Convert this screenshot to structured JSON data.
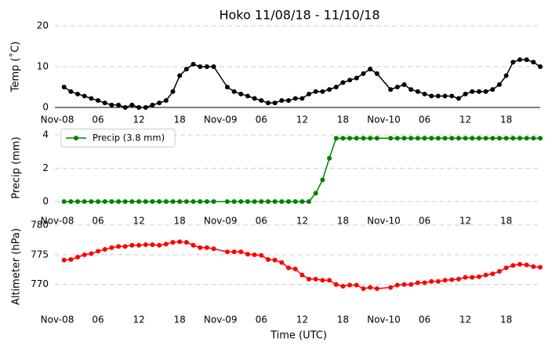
{
  "chart_data": [
    {
      "type": "line",
      "title": "Hoko 11/08/18 - 11/10/18",
      "ylabel": "Temp (˚C)",
      "x": [
        "Nov-08 01:00",
        "Nov-08 02:00",
        "Nov-08 03:00",
        "Nov-08 04:00",
        "Nov-08 05:00",
        "Nov-08 06:00",
        "Nov-08 07:00",
        "Nov-08 08:00",
        "Nov-08 09:00",
        "Nov-08 10:00",
        "Nov-08 11:00",
        "Nov-08 12:00",
        "Nov-08 13:00",
        "Nov-08 14:00",
        "Nov-08 15:00",
        "Nov-08 16:00",
        "Nov-08 17:00",
        "Nov-08 18:00",
        "Nov-08 19:00",
        "Nov-08 20:00",
        "Nov-08 21:00",
        "Nov-08 22:00",
        "Nov-08 23:00",
        "Nov-09 01:00",
        "Nov-09 02:00",
        "Nov-09 03:00",
        "Nov-09 04:00",
        "Nov-09 05:00",
        "Nov-09 06:00",
        "Nov-09 07:00",
        "Nov-09 08:00",
        "Nov-09 09:00",
        "Nov-09 10:00",
        "Nov-09 11:00",
        "Nov-09 12:00",
        "Nov-09 13:00",
        "Nov-09 14:00",
        "Nov-09 15:00",
        "Nov-09 16:00",
        "Nov-09 17:00",
        "Nov-09 18:00",
        "Nov-09 19:00",
        "Nov-09 20:00",
        "Nov-09 21:00",
        "Nov-09 22:00",
        "Nov-09 23:00",
        "Nov-10 01:00",
        "Nov-10 02:00",
        "Nov-10 03:00",
        "Nov-10 04:00",
        "Nov-10 05:00",
        "Nov-10 06:00",
        "Nov-10 07:00",
        "Nov-10 08:00",
        "Nov-10 09:00",
        "Nov-10 10:00",
        "Nov-10 11:00",
        "Nov-10 12:00",
        "Nov-10 13:00",
        "Nov-10 14:00",
        "Nov-10 15:00",
        "Nov-10 16:00",
        "Nov-10 17:00",
        "Nov-10 18:00",
        "Nov-10 19:00",
        "Nov-10 20:00",
        "Nov-10 21:00",
        "Nov-10 22:00",
        "Nov-10 23:00"
      ],
      "series": [
        {
          "name": "Temp",
          "color": "#000000",
          "values": [
            5,
            3.9,
            3.3,
            2.8,
            2.2,
            1.7,
            1.1,
            0.6,
            0.6,
            0,
            0.6,
            0,
            0,
            0.6,
            1.1,
            1.7,
            3.9,
            7.8,
            9.4,
            10.6,
            10,
            10,
            10,
            5,
            3.9,
            3.3,
            2.8,
            2.2,
            1.7,
            1.1,
            1.1,
            1.7,
            1.7,
            2.2,
            2.2,
            3.3,
            3.9,
            3.9,
            4.4,
            5,
            6.1,
            6.7,
            7.2,
            8.3,
            9.4,
            8.3,
            4.4,
            5,
            5.6,
            4.4,
            3.9,
            3.3,
            2.8,
            2.8,
            2.8,
            2.8,
            2.2,
            3.3,
            3.9,
            3.9,
            3.9,
            4.4,
            5.6,
            7.8,
            11.1,
            11.7,
            11.7,
            11.1,
            10
          ]
        }
      ],
      "xlim": [
        "Nov-08 00:00",
        "Nov-10 23:00"
      ],
      "xticks": [
        {
          "value": "Nov-08 00:00",
          "label": "Nov-08"
        },
        {
          "value": "Nov-08 06:00",
          "label": "06"
        },
        {
          "value": "Nov-08 12:00",
          "label": "12"
        },
        {
          "value": "Nov-08 18:00",
          "label": "18"
        },
        {
          "value": "Nov-09 00:00",
          "label": "Nov-09"
        },
        {
          "value": "Nov-09 06:00",
          "label": "06"
        },
        {
          "value": "Nov-09 12:00",
          "label": "12"
        },
        {
          "value": "Nov-09 18:00",
          "label": "18"
        },
        {
          "value": "Nov-10 00:00",
          "label": "Nov-10"
        },
        {
          "value": "Nov-10 06:00",
          "label": "06"
        },
        {
          "value": "Nov-10 12:00",
          "label": "12"
        },
        {
          "value": "Nov-10 18:00",
          "label": "18"
        }
      ],
      "ylim": [
        0,
        20
      ],
      "yticks": [
        0,
        10,
        20
      ],
      "grid": true
    },
    {
      "type": "line",
      "ylabel": "Precip (mm)",
      "legend": "upper left",
      "x": [
        "Nov-08 01:00",
        "Nov-08 02:00",
        "Nov-08 03:00",
        "Nov-08 04:00",
        "Nov-08 05:00",
        "Nov-08 06:00",
        "Nov-08 07:00",
        "Nov-08 08:00",
        "Nov-08 09:00",
        "Nov-08 10:00",
        "Nov-08 11:00",
        "Nov-08 12:00",
        "Nov-08 13:00",
        "Nov-08 14:00",
        "Nov-08 15:00",
        "Nov-08 16:00",
        "Nov-08 17:00",
        "Nov-08 18:00",
        "Nov-08 19:00",
        "Nov-08 20:00",
        "Nov-08 21:00",
        "Nov-08 22:00",
        "Nov-08 23:00",
        "Nov-09 01:00",
        "Nov-09 02:00",
        "Nov-09 03:00",
        "Nov-09 04:00",
        "Nov-09 05:00",
        "Nov-09 06:00",
        "Nov-09 07:00",
        "Nov-09 08:00",
        "Nov-09 09:00",
        "Nov-09 10:00",
        "Nov-09 11:00",
        "Nov-09 12:00",
        "Nov-09 13:00",
        "Nov-09 14:00",
        "Nov-09 15:00",
        "Nov-09 16:00",
        "Nov-09 17:00",
        "Nov-09 18:00",
        "Nov-09 19:00",
        "Nov-09 20:00",
        "Nov-09 21:00",
        "Nov-09 22:00",
        "Nov-09 23:00",
        "Nov-10 01:00",
        "Nov-10 02:00",
        "Nov-10 03:00",
        "Nov-10 04:00",
        "Nov-10 05:00",
        "Nov-10 06:00",
        "Nov-10 07:00",
        "Nov-10 08:00",
        "Nov-10 09:00",
        "Nov-10 10:00",
        "Nov-10 11:00",
        "Nov-10 12:00",
        "Nov-10 13:00",
        "Nov-10 14:00",
        "Nov-10 15:00",
        "Nov-10 16:00",
        "Nov-10 17:00",
        "Nov-10 18:00",
        "Nov-10 19:00",
        "Nov-10 20:00",
        "Nov-10 21:00",
        "Nov-10 22:00",
        "Nov-10 23:00"
      ],
      "series": [
        {
          "name": "Precip (3.8 mm)",
          "color": "#008000",
          "values": [
            0,
            0,
            0,
            0,
            0,
            0,
            0,
            0,
            0,
            0,
            0,
            0,
            0,
            0,
            0,
            0,
            0,
            0,
            0,
            0,
            0,
            0,
            0,
            0,
            0,
            0,
            0,
            0,
            0,
            0,
            0,
            0,
            0,
            0,
            0,
            0,
            0.5,
            1.3,
            2.6,
            3.8,
            3.8,
            3.8,
            3.8,
            3.8,
            3.8,
            3.8,
            3.8,
            3.8,
            3.8,
            3.8,
            3.8,
            3.8,
            3.8,
            3.8,
            3.8,
            3.8,
            3.8,
            3.8,
            3.8,
            3.8,
            3.8,
            3.8,
            3.8,
            3.8,
            3.8,
            3.8,
            3.8,
            3.8,
            3.8
          ]
        }
      ],
      "xlim": [
        "Nov-08 00:00",
        "Nov-10 23:00"
      ],
      "xticks": [
        {
          "value": "Nov-08 00:00",
          "label": "Nov-08"
        },
        {
          "value": "Nov-08 06:00",
          "label": "06"
        },
        {
          "value": "Nov-08 12:00",
          "label": "12"
        },
        {
          "value": "Nov-08 18:00",
          "label": "18"
        },
        {
          "value": "Nov-09 00:00",
          "label": "Nov-09"
        },
        {
          "value": "Nov-09 06:00",
          "label": "06"
        },
        {
          "value": "Nov-09 12:00",
          "label": "12"
        },
        {
          "value": "Nov-09 18:00",
          "label": "18"
        },
        {
          "value": "Nov-10 00:00",
          "label": "Nov-10"
        },
        {
          "value": "Nov-10 06:00",
          "label": "06"
        },
        {
          "value": "Nov-10 12:00",
          "label": "12"
        },
        {
          "value": "Nov-10 18:00",
          "label": "18"
        }
      ],
      "ylim": [
        -0.4,
        4.4
      ],
      "yticks": [
        0,
        2,
        4
      ],
      "grid": true
    },
    {
      "type": "line",
      "ylabel": "Altimeter (hPa)",
      "xlabel": "Time (UTC)",
      "x": [
        "Nov-08 01:00",
        "Nov-08 02:00",
        "Nov-08 03:00",
        "Nov-08 04:00",
        "Nov-08 05:00",
        "Nov-08 06:00",
        "Nov-08 07:00",
        "Nov-08 08:00",
        "Nov-08 09:00",
        "Nov-08 10:00",
        "Nov-08 11:00",
        "Nov-08 12:00",
        "Nov-08 13:00",
        "Nov-08 14:00",
        "Nov-08 15:00",
        "Nov-08 16:00",
        "Nov-08 17:00",
        "Nov-08 18:00",
        "Nov-08 19:00",
        "Nov-08 20:00",
        "Nov-08 21:00",
        "Nov-08 22:00",
        "Nov-08 23:00",
        "Nov-09 01:00",
        "Nov-09 02:00",
        "Nov-09 03:00",
        "Nov-09 04:00",
        "Nov-09 05:00",
        "Nov-09 06:00",
        "Nov-09 07:00",
        "Nov-09 08:00",
        "Nov-09 09:00",
        "Nov-09 10:00",
        "Nov-09 11:00",
        "Nov-09 12:00",
        "Nov-09 13:00",
        "Nov-09 14:00",
        "Nov-09 15:00",
        "Nov-09 16:00",
        "Nov-09 17:00",
        "Nov-09 18:00",
        "Nov-09 19:00",
        "Nov-09 20:00",
        "Nov-09 21:00",
        "Nov-09 22:00",
        "Nov-09 23:00",
        "Nov-10 01:00",
        "Nov-10 02:00",
        "Nov-10 03:00",
        "Nov-10 04:00",
        "Nov-10 05:00",
        "Nov-10 06:00",
        "Nov-10 07:00",
        "Nov-10 08:00",
        "Nov-10 09:00",
        "Nov-10 10:00",
        "Nov-10 11:00",
        "Nov-10 12:00",
        "Nov-10 13:00",
        "Nov-10 14:00",
        "Nov-10 15:00",
        "Nov-10 16:00",
        "Nov-10 17:00",
        "Nov-10 18:00",
        "Nov-10 19:00",
        "Nov-10 20:00",
        "Nov-10 21:00",
        "Nov-10 22:00",
        "Nov-10 23:00"
      ],
      "series": [
        {
          "name": "Altimeter",
          "color": "#ff0000",
          "values": [
            774.1,
            774.2,
            774.6,
            775,
            775.2,
            775.6,
            775.9,
            776.2,
            776.4,
            776.4,
            776.6,
            776.6,
            776.7,
            776.7,
            776.6,
            776.8,
            777.1,
            777.2,
            777.1,
            776.6,
            776.2,
            776.2,
            776,
            775.5,
            775.5,
            775.5,
            775.1,
            775,
            774.9,
            774.2,
            774.1,
            773.7,
            772.8,
            772.6,
            771.6,
            770.9,
            770.9,
            770.7,
            770.7,
            770,
            769.7,
            769.9,
            769.9,
            769.3,
            769.5,
            769.3,
            769.5,
            769.9,
            770,
            770,
            770.3,
            770.3,
            770.5,
            770.5,
            770.7,
            770.8,
            770.9,
            771.2,
            771.2,
            771.3,
            771.6,
            771.8,
            772.2,
            772.8,
            773.2,
            773.4,
            773.3,
            773,
            772.9
          ]
        }
      ],
      "xlim": [
        "Nov-08 00:00",
        "Nov-10 23:00"
      ],
      "xticks": [
        {
          "value": "Nov-08 00:00",
          "label": "Nov-08"
        },
        {
          "value": "Nov-08 06:00",
          "label": "06"
        },
        {
          "value": "Nov-08 12:00",
          "label": "12"
        },
        {
          "value": "Nov-08 18:00",
          "label": "18"
        },
        {
          "value": "Nov-09 00:00",
          "label": "Nov-09"
        },
        {
          "value": "Nov-09 06:00",
          "label": "06"
        },
        {
          "value": "Nov-09 12:00",
          "label": "12"
        },
        {
          "value": "Nov-09 18:00",
          "label": "18"
        },
        {
          "value": "Nov-10 00:00",
          "label": "Nov-10"
        },
        {
          "value": "Nov-10 06:00",
          "label": "06"
        },
        {
          "value": "Nov-10 12:00",
          "label": "12"
        },
        {
          "value": "Nov-10 18:00",
          "label": "18"
        }
      ],
      "ylim": [
        766,
        780
      ],
      "yticks": [
        770,
        775,
        780
      ],
      "grid": true
    }
  ]
}
